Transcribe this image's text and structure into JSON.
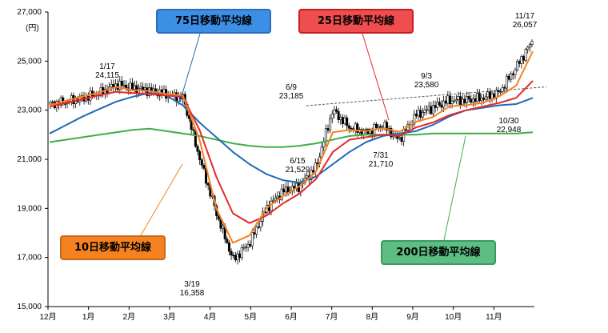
{
  "chart_data": {
    "type": "candlestick",
    "yaxis": {
      "min": 15000,
      "max": 27000,
      "unit": "(円)",
      "ticks": [
        {
          "value": 27000,
          "label": "27,000"
        },
        {
          "value": 25000,
          "label": "25,000"
        },
        {
          "value": 23000,
          "label": "23,000"
        },
        {
          "value": 21000,
          "label": "21,000"
        },
        {
          "value": 19000,
          "label": "19,000"
        },
        {
          "value": 17000,
          "label": "17,000"
        },
        {
          "value": 15000,
          "label": "15,000"
        }
      ]
    },
    "xaxis": {
      "labels": [
        "12月",
        "1月",
        "2月",
        "3月",
        "4月",
        "5月",
        "6月",
        "7月",
        "8月",
        "9月",
        "10月",
        "11月"
      ]
    },
    "series": [
      {
        "name": "10日移動平均線",
        "color": "#f58220",
        "box_bg": "#f58220",
        "box_border": "#c9661a",
        "values": [
          23200,
          23380,
          23560,
          23720,
          23950,
          23820,
          23780,
          23660,
          23600,
          21800,
          19000,
          17600,
          17900,
          19000,
          19500,
          19900,
          20500,
          22100,
          22200,
          22150,
          22270,
          22120,
          22530,
          22720,
          23160,
          23200,
          23300,
          23570,
          24000,
          25400
        ]
      },
      {
        "name": "25日移動平均線",
        "color": "#e8262b",
        "box_bg": "#f04e4e",
        "box_border": "#c71d1d",
        "values": [
          23150,
          23300,
          23450,
          23620,
          23750,
          23700,
          23660,
          23600,
          23550,
          22200,
          20300,
          18800,
          18400,
          18700,
          19200,
          19600,
          20200,
          21300,
          21800,
          21900,
          22000,
          21950,
          22300,
          22500,
          22800,
          23000,
          23150,
          23300,
          23500,
          24200
        ]
      },
      {
        "name": "75日移動平均線",
        "color": "#1f6bb5",
        "box_bg": "#3d8fe6",
        "box_border": "#2b6cc0",
        "values": [
          22050,
          22400,
          22750,
          23050,
          23350,
          23550,
          23700,
          23600,
          23200,
          22500,
          21900,
          21300,
          20800,
          20400,
          20150,
          20050,
          20300,
          20800,
          21300,
          21700,
          21950,
          22050,
          22150,
          22400,
          22750,
          23000,
          23100,
          23200,
          23250,
          23500
        ]
      },
      {
        "name": "200日移動平均線",
        "color": "#3fae49",
        "box_bg": "#5dbe84",
        "box_border": "#3a9a62",
        "values": [
          21700,
          21800,
          21900,
          22000,
          22100,
          22200,
          22250,
          22150,
          22050,
          21950,
          21800,
          21650,
          21550,
          21500,
          21500,
          21550,
          21650,
          21800,
          21950,
          22000,
          22000,
          22000,
          22000,
          22050,
          22050,
          22050,
          22050,
          22050,
          22050,
          22100
        ]
      }
    ],
    "candles": [
      23250,
      23350,
      23500,
      23700,
      24050,
      23900,
      23800,
      23650,
      23500,
      21000,
      18800,
      16900,
      17600,
      19000,
      19700,
      19900,
      20700,
      23000,
      22300,
      22100,
      22400,
      21800,
      22800,
      23100,
      23400,
      23400,
      23500,
      23700,
      24700,
      25800
    ],
    "annotations": [
      {
        "id": "jan17",
        "date": "1/17",
        "value": "24,115"
      },
      {
        "id": "mar19",
        "date": "3/19",
        "value": "16,358"
      },
      {
        "id": "jun9",
        "date": "6/9",
        "value": "23,185"
      },
      {
        "id": "jun15",
        "date": "6/15",
        "value": "21,529"
      },
      {
        "id": "jul31",
        "date": "7/31",
        "value": "21,710"
      },
      {
        "id": "sep3",
        "date": "9/3",
        "value": "23,580"
      },
      {
        "id": "oct30",
        "date": "10/30",
        "value": "22,948"
      },
      {
        "id": "nov17",
        "date": "11/17",
        "value": "26,057"
      }
    ],
    "grid": false,
    "legend": "callout boxes"
  }
}
